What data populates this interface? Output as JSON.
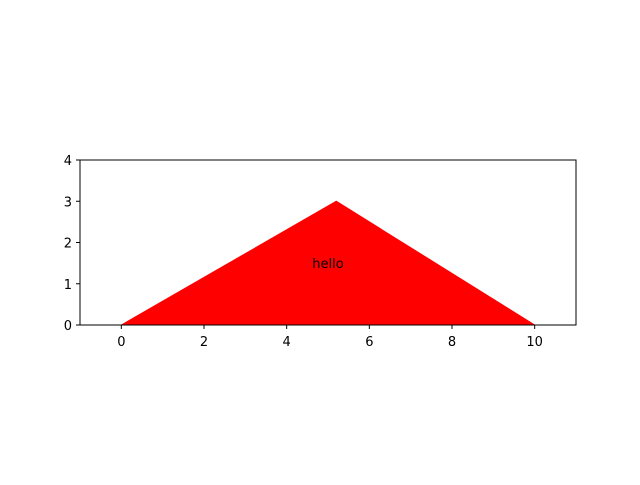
{
  "chart_data": {
    "type": "area",
    "title": "",
    "xlabel": "",
    "ylabel": "",
    "xlim": [
      -1,
      11
    ],
    "ylim": [
      0,
      4
    ],
    "x_ticks": [
      0,
      2,
      4,
      6,
      8,
      10
    ],
    "y_ticks": [
      0,
      1,
      2,
      3,
      4
    ],
    "grid": false,
    "series": [
      {
        "fill_color": "#ff0000",
        "x": [
          0,
          5.2,
          10
        ],
        "y": [
          0,
          3,
          0
        ]
      }
    ],
    "annotations": [
      {
        "text": "hello",
        "x": 5,
        "y": 1.5
      }
    ]
  }
}
